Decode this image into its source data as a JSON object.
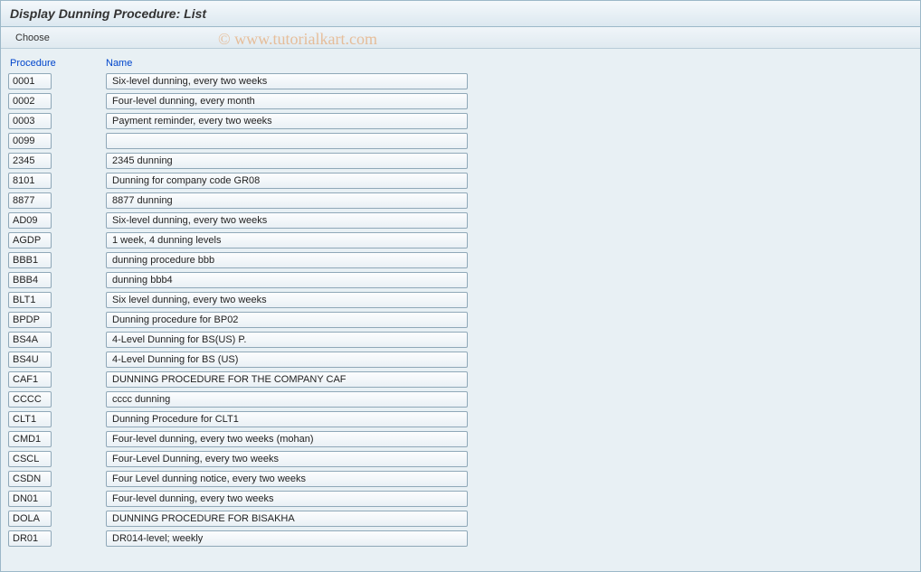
{
  "title": "Display Dunning Procedure: List",
  "toolbar": {
    "choose_label": "Choose"
  },
  "watermark": "© www.tutorialkart.com",
  "columns": {
    "procedure": "Procedure",
    "name": "Name"
  },
  "rows": [
    {
      "proc": "0001",
      "name": "Six-level dunning, every two weeks"
    },
    {
      "proc": "0002",
      "name": "Four-level dunning, every month"
    },
    {
      "proc": "0003",
      "name": "Payment reminder, every two weeks"
    },
    {
      "proc": "0099",
      "name": ""
    },
    {
      "proc": "2345",
      "name": " 2345 dunning"
    },
    {
      "proc": "8101",
      "name": "Dunning for company code GR08"
    },
    {
      "proc": "8877",
      "name": "8877 dunning"
    },
    {
      "proc": "AD09",
      "name": "Six-level dunning, every two weeks"
    },
    {
      "proc": "AGDP",
      "name": "1 week, 4 dunning levels"
    },
    {
      "proc": "BBB1",
      "name": "dunning procedure bbb"
    },
    {
      "proc": "BBB4",
      "name": "dunning bbb4"
    },
    {
      "proc": "BLT1",
      "name": "Six level dunning, every two weeks"
    },
    {
      "proc": "BPDP",
      "name": "Dunning procedure for BP02"
    },
    {
      "proc": "BS4A",
      "name": "4-Level Dunning for BS(US) P."
    },
    {
      "proc": "BS4U",
      "name": "4-Level Dunning for BS (US)"
    },
    {
      "proc": "CAF1",
      "name": "DUNNING PROCEDURE FOR THE COMPANY CAF"
    },
    {
      "proc": "CCCC",
      "name": "cccc dunning"
    },
    {
      "proc": "CLT1",
      "name": "Dunning Procedure for CLT1"
    },
    {
      "proc": "CMD1",
      "name": "Four-level dunning, every two weeks (mohan)"
    },
    {
      "proc": "CSCL",
      "name": "Four-Level Dunning, every two weeks"
    },
    {
      "proc": "CSDN",
      "name": "Four Level dunning notice, every two weeks"
    },
    {
      "proc": "DN01",
      "name": "Four-level dunning, every two weeks"
    },
    {
      "proc": "DOLA",
      "name": "DUNNING PROCEDURE FOR BISAKHA"
    },
    {
      "proc": "DR01",
      "name": "DR014-level; weekly"
    }
  ],
  "colors": {
    "background": "#e8f0f4",
    "header_link": "#0045cc",
    "border": "#8fa8b8"
  }
}
